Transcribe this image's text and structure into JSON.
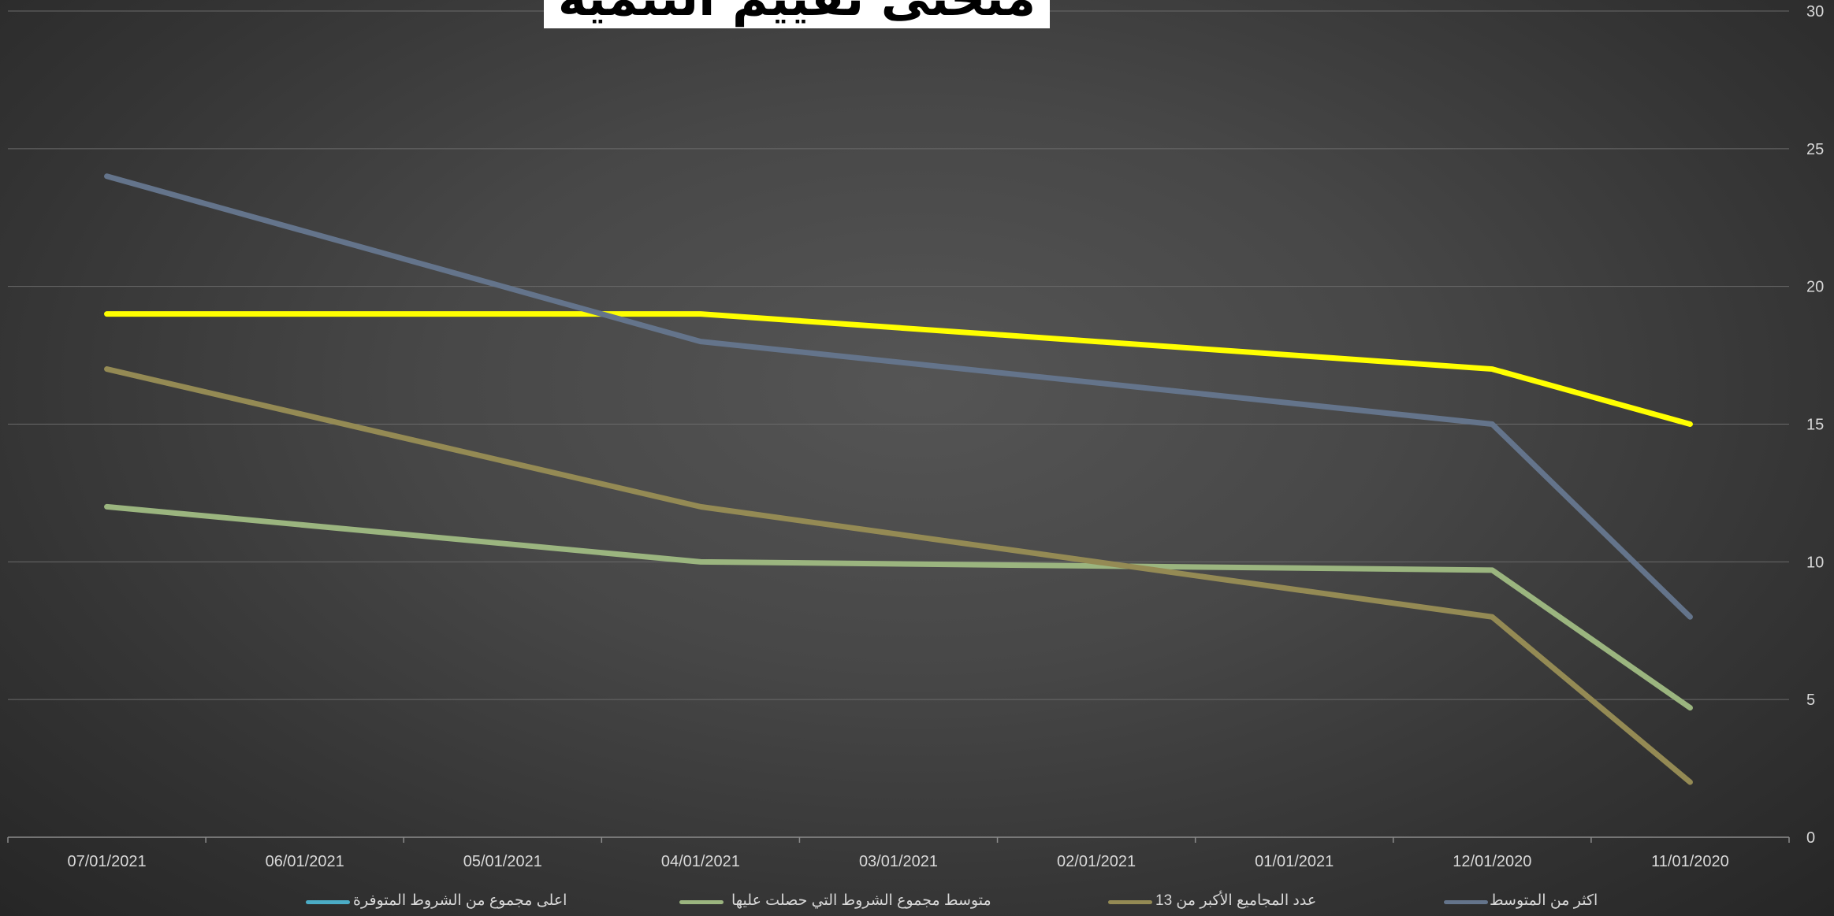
{
  "chart_data": {
    "type": "line",
    "title": "منحنى تقييم التنمية",
    "categories": [
      "07/01/2021",
      "06/01/2021",
      "05/01/2021",
      "04/01/2021",
      "03/01/2021",
      "02/01/2021",
      "01/01/2021",
      "12/01/2020",
      "11/01/2020"
    ],
    "y_axis": {
      "min": 0,
      "max": 30,
      "major_unit": 5,
      "position": "right",
      "ticks": [
        "0",
        "5",
        "10",
        "15",
        "20",
        "25",
        "30"
      ]
    },
    "grid": true,
    "legend_position": "bottom",
    "series": [
      {
        "name": "اعلى مجموع من الشروط المتوفرة",
        "color": "#ffff00",
        "legend_color": "#4bacc6",
        "x": [
          "07/01/2021",
          "04/01/2021",
          "12/01/2020",
          "11/01/2020"
        ],
        "values": [
          19,
          19,
          17,
          15
        ]
      },
      {
        "name": "متوسط مجموع الشروط التي حصلت عليها",
        "color": "#9bb57f",
        "legend_color": "#9bb57f",
        "x": [
          "07/01/2021",
          "04/01/2021",
          "12/01/2020",
          "11/01/2020"
        ],
        "values": [
          12,
          10,
          9.7,
          4.7
        ]
      },
      {
        "name": "عدد المجاميع الأكبر من 13",
        "color": "#948a54",
        "legend_color": "#948a54",
        "x": [
          "07/01/2021",
          "04/01/2021",
          "12/01/2020",
          "11/01/2020"
        ],
        "values": [
          17,
          12,
          8,
          2
        ]
      },
      {
        "name": "اكثر من المتوسط",
        "color": "#64748b",
        "legend_color": "#64748b",
        "x": [
          "07/01/2021",
          "04/01/2021",
          "12/01/2020",
          "11/01/2020"
        ],
        "values": [
          24,
          18,
          15,
          8
        ]
      }
    ]
  }
}
